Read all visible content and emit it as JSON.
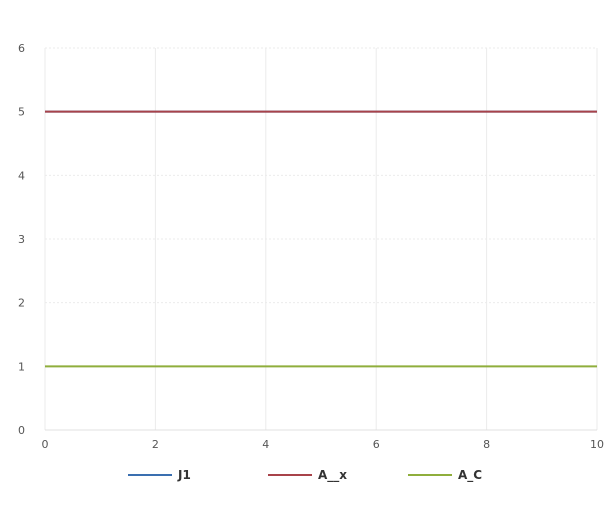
{
  "chart_data": {
    "type": "line",
    "title": "",
    "xlabel": "",
    "ylabel": "",
    "xlim": [
      0,
      10
    ],
    "ylim": [
      0,
      6
    ],
    "x_ticks": [
      0,
      2,
      4,
      6,
      8,
      10
    ],
    "y_ticks": [
      0,
      1,
      2,
      3,
      4,
      5,
      6
    ],
    "x_tick_labels": [
      "0",
      "2",
      "4",
      "6",
      "8",
      "10"
    ],
    "y_tick_labels": [
      "0",
      "1",
      "2",
      "3",
      "4",
      "5",
      "6"
    ],
    "grid": true,
    "legend_position": "bottom",
    "x": [
      0,
      10
    ],
    "series": [
      {
        "name": "J1",
        "color": "#3a6fb0",
        "values": [
          5,
          5
        ]
      },
      {
        "name": "A__x",
        "color": "#a8434a",
        "values": [
          5,
          5
        ]
      },
      {
        "name": "A_C",
        "color": "#8fae3c",
        "values": [
          1,
          1
        ]
      }
    ]
  }
}
